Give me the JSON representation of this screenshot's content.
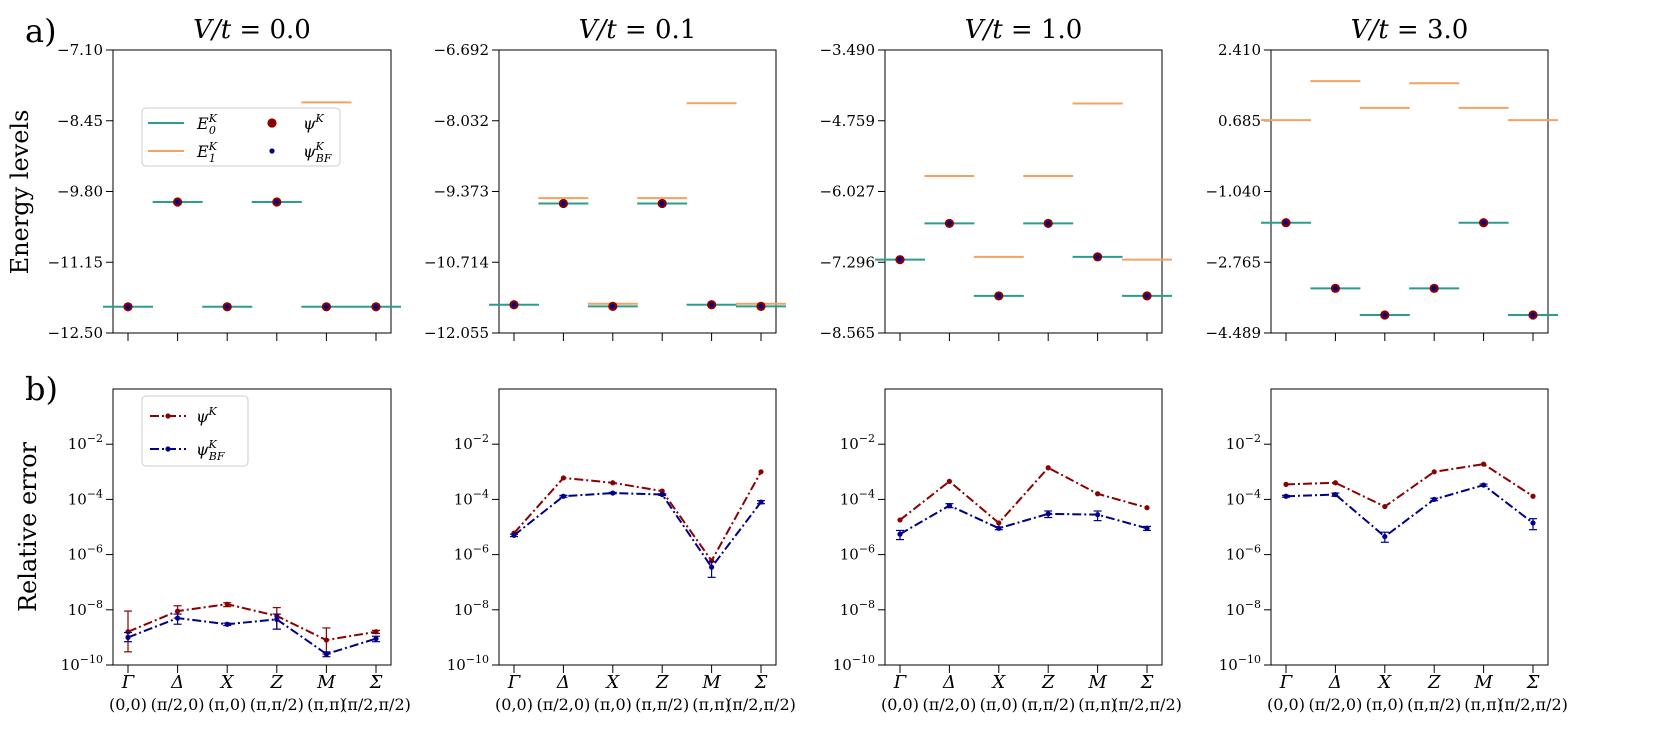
{
  "figure": {
    "panel_labels": [
      "a)",
      "b)"
    ],
    "ylabel_top": "Energy levels",
    "ylabel_bottom": "Relative error",
    "k_points": [
      {
        "name": "Γ",
        "coord": "(0,0)"
      },
      {
        "name": "Δ",
        "coord": "(π/2,0)"
      },
      {
        "name": "X",
        "coord": "(π,0)"
      },
      {
        "name": "Z",
        "coord": "(π,π/2)"
      },
      {
        "name": "M",
        "coord": "(π,π)"
      },
      {
        "name": "Σ",
        "coord": "(π/2,π/2)"
      }
    ],
    "legend_top": [
      "E0K",
      "E1K",
      "ψK",
      "ψBFK"
    ],
    "legend_bottom": [
      "ψK",
      "ψBFK"
    ],
    "colors": {
      "E0": "#2a9d8f",
      "E1": "#f4a261",
      "psiK": "#8b0000",
      "psiBF": "#00008b"
    }
  },
  "chart_data": [
    {
      "type": "line",
      "title": "V/t = 0.0",
      "ylabel": "Energy levels",
      "ylim": [
        -12.5,
        -7.1
      ],
      "yticks": [
        "-7.10",
        "-8.45",
        "-9.80",
        "-11.15",
        "-12.50"
      ],
      "series": [
        {
          "name": "E0K",
          "values": [
            -12.0,
            -10.0,
            -12.0,
            -10.0,
            -12.0,
            -12.0
          ]
        },
        {
          "name": "E1K",
          "values": [
            null,
            null,
            null,
            null,
            -8.1,
            null
          ]
        },
        {
          "name": "ψK",
          "values": [
            -12.0,
            -10.0,
            -12.0,
            -10.0,
            -12.0,
            -12.0
          ]
        },
        {
          "name": "ψBFK",
          "values": [
            -12.0,
            -10.0,
            -12.0,
            -10.0,
            -12.0,
            -12.0
          ]
        }
      ]
    },
    {
      "type": "line",
      "title": "V/t = 0.1",
      "ylabel": "Energy levels",
      "ylim": [
        -12.055,
        -6.692
      ],
      "yticks": [
        "-6.692",
        "-8.032",
        "-9.373",
        "-10.714",
        "-12.055"
      ],
      "series": [
        {
          "name": "E0K",
          "values": [
            -11.52,
            -9.6,
            -11.55,
            -9.6,
            -11.52,
            -11.55
          ]
        },
        {
          "name": "E1K",
          "values": [
            null,
            -9.5,
            -11.5,
            -9.5,
            -7.7,
            -11.5
          ]
        },
        {
          "name": "ψK",
          "values": [
            -11.52,
            -9.6,
            -11.55,
            -9.6,
            -11.52,
            -11.55
          ]
        },
        {
          "name": "ψBFK",
          "values": [
            -11.52,
            -9.6,
            -11.55,
            -9.6,
            -11.52,
            -11.55
          ]
        }
      ]
    },
    {
      "type": "line",
      "title": "V/t = 1.0",
      "ylabel": "Energy levels",
      "ylim": [
        -8.565,
        -3.49
      ],
      "yticks": [
        "-3.490",
        "-4.759",
        "-6.027",
        "-7.296",
        "-8.565"
      ],
      "series": [
        {
          "name": "E0K",
          "values": [
            -7.25,
            -6.6,
            -7.9,
            -6.6,
            -7.2,
            -7.9
          ]
        },
        {
          "name": "E1K",
          "values": [
            null,
            -5.75,
            -7.2,
            -5.75,
            -4.45,
            -7.25
          ]
        },
        {
          "name": "ψK",
          "values": [
            -7.25,
            -6.6,
            -7.9,
            -6.6,
            -7.2,
            -7.9
          ]
        },
        {
          "name": "ψBFK",
          "values": [
            -7.25,
            -6.6,
            -7.9,
            -6.6,
            -7.2,
            -7.9
          ]
        }
      ]
    },
    {
      "type": "line",
      "title": "V/t = 3.0",
      "ylabel": "Energy levels",
      "ylim": [
        -4.489,
        2.41
      ],
      "yticks": [
        "2.410",
        "0.685",
        "-1.040",
        "-2.765",
        "-4.489"
      ],
      "series": [
        {
          "name": "E0K",
          "values": [
            -1.8,
            -3.4,
            -4.05,
            -3.4,
            -1.8,
            -4.05
          ]
        },
        {
          "name": "E1K",
          "values": [
            0.7,
            1.65,
            1.0,
            1.6,
            1.0,
            0.7
          ]
        },
        {
          "name": "ψK",
          "values": [
            -1.8,
            -3.4,
            -4.05,
            -3.4,
            -1.8,
            -4.05
          ]
        },
        {
          "name": "ψBFK",
          "values": [
            -1.8,
            -3.4,
            -4.05,
            -3.4,
            -1.8,
            -4.05
          ]
        }
      ]
    },
    {
      "type": "line",
      "title": "",
      "ylabel": "Relative error",
      "yscale": "log",
      "ylim": [
        1e-10,
        1
      ],
      "yticks": [
        "10^-2",
        "10^-4",
        "10^-6",
        "10^-8",
        "10^-10"
      ],
      "series": [
        {
          "name": "ψK",
          "values": [
            1.6e-09,
            9e-09,
            1.6e-08,
            6e-09,
            8e-10,
            1.6e-09
          ],
          "err_low": [
            3e-10,
            5e-09,
            1.3e-08,
            2e-09,
            2.5e-10,
            1.4e-09
          ],
          "err_high": [
            9e-09,
            1.4e-08,
            1.8e-08,
            1.2e-08,
            2.2e-09,
            1.8e-09
          ]
        },
        {
          "name": "ψBFK",
          "values": [
            1e-09,
            5e-09,
            3e-09,
            4.5e-09,
            2.5e-10,
            9e-10
          ],
          "err_low": [
            7e-10,
            3e-09,
            2.7e-09,
            2e-09,
            2e-10,
            7e-10
          ],
          "err_high": [
            1.5e-09,
            7e-09,
            3.3e-09,
            7e-09,
            3e-10,
            1.1e-09
          ]
        }
      ]
    },
    {
      "type": "line",
      "title": "",
      "ylabel": "",
      "yscale": "log",
      "ylim": [
        1e-10,
        1
      ],
      "yticks": [
        "10^-2",
        "10^-4",
        "10^-6",
        "10^-8",
        "10^-10"
      ],
      "series": [
        {
          "name": "ψK",
          "values": [
            6e-06,
            0.0006,
            0.0004,
            0.0002,
            6e-07,
            0.001
          ]
        },
        {
          "name": "ψBFK",
          "values": [
            5e-06,
            0.00013,
            0.00017,
            0.00015,
            3.5e-07,
            8e-05
          ],
          "err_low": [
            4.5e-06,
            0.00012,
            0.00016,
            0.00014,
            1.5e-07,
            7e-05
          ],
          "err_high": [
            5.5e-06,
            0.00014,
            0.00018,
            0.00016,
            5.5e-07,
            9e-05
          ]
        }
      ]
    },
    {
      "type": "line",
      "title": "",
      "ylabel": "",
      "yscale": "log",
      "ylim": [
        1e-10,
        1
      ],
      "yticks": [
        "10^-2",
        "10^-4",
        "10^-6",
        "10^-8",
        "10^-10"
      ],
      "series": [
        {
          "name": "ψK",
          "values": [
            1.8e-05,
            0.00045,
            1.4e-05,
            0.0014,
            0.00016,
            5e-05
          ]
        },
        {
          "name": "ψBFK",
          "values": [
            5.5e-06,
            6e-05,
            9e-06,
            3e-05,
            2.8e-05,
            9e-06
          ],
          "err_low": [
            3.5e-06,
            5e-05,
            8e-06,
            2.2e-05,
            1.7e-05,
            7.5e-06
          ],
          "err_high": [
            7.5e-06,
            7e-05,
            1e-05,
            3.8e-05,
            3.8e-05,
            1.05e-05
          ]
        }
      ]
    },
    {
      "type": "line",
      "title": "",
      "ylabel": "",
      "yscale": "log",
      "ylim": [
        1e-10,
        1
      ],
      "yticks": [
        "10^-2",
        "10^-4",
        "10^-6",
        "10^-8",
        "10^-10"
      ],
      "series": [
        {
          "name": "ψK",
          "values": [
            0.00035,
            0.0004,
            5.5e-05,
            0.001,
            0.0019,
            0.00013
          ]
        },
        {
          "name": "ψBFK",
          "values": [
            0.00013,
            0.00015,
            4.5e-06,
            0.0001,
            0.00033,
            1.4e-05
          ],
          "err_low": [
            0.00012,
            0.00013,
            2.8e-06,
            9e-05,
            0.0003,
            8e-06
          ],
          "err_high": [
            0.00014,
            0.00017,
            6.5e-06,
            0.00011,
            0.00036,
            2e-05
          ]
        }
      ]
    }
  ]
}
